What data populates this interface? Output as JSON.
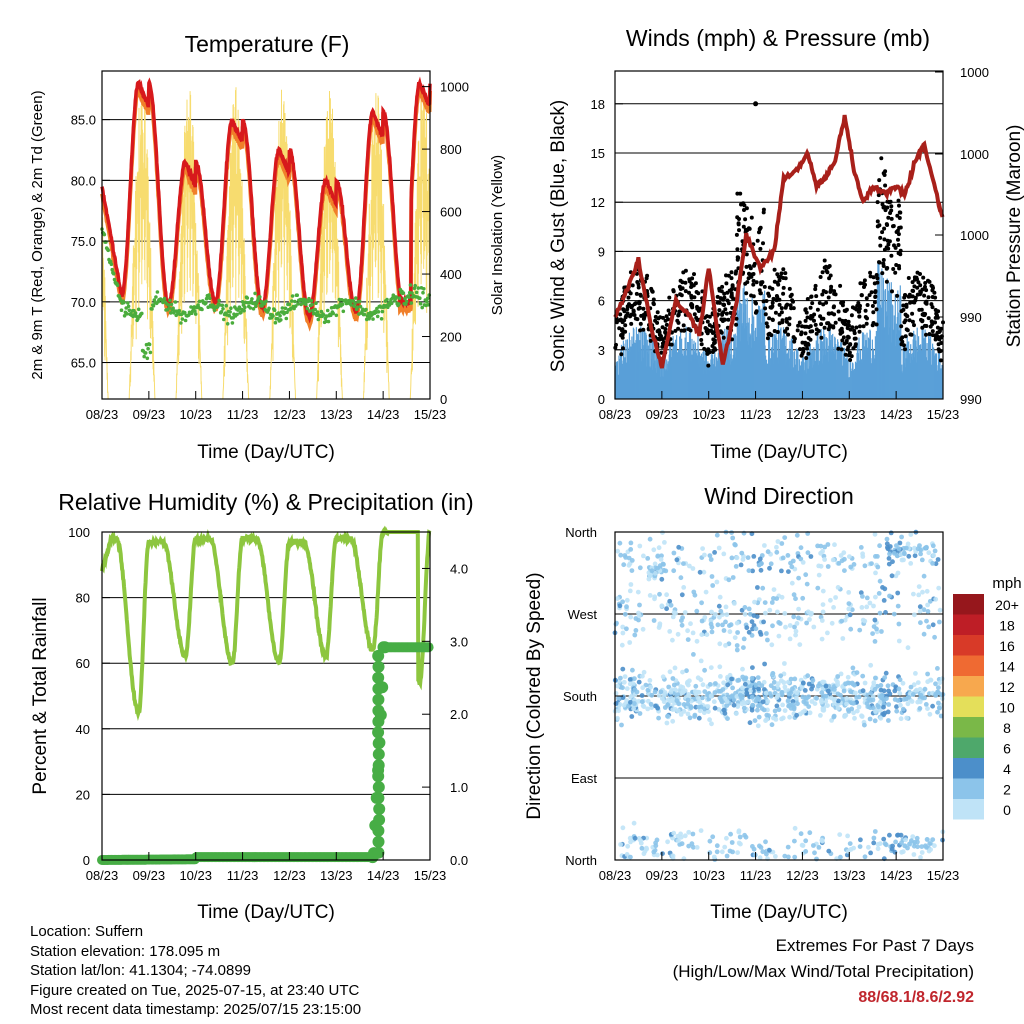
{
  "x_tick_labels": [
    "08/23",
    "09/23",
    "10/23",
    "11/23",
    "12/23",
    "13/23",
    "14/23",
    "15/23"
  ],
  "colors": {
    "temp_2m": "#d7191c",
    "temp_9m": "#f07f2a",
    "dewpoint": "#4aac3c",
    "solar": "#f7dc6f",
    "wind": "#5aa0d8",
    "gust": "#000000",
    "pressure": "#a8201a",
    "rh": "#8dc63f",
    "rain": "#47ad45"
  },
  "panels": {
    "temperature": {
      "title": "Temperature (F)",
      "xlabel": "Time (Day/UTC)",
      "ylabel": "2m & 9m T (Red, Orange) & 2m Td (Green)",
      "ylabel_right": "Solar Insolation (Yellow)",
      "y_ticks": [
        "65.0",
        "70.0",
        "75.0",
        "80.0",
        "85.0"
      ],
      "y2_ticks": [
        "0",
        "200",
        "400",
        "600",
        "800",
        "1000"
      ]
    },
    "winds": {
      "title": "Winds (mph) & Pressure (mb)",
      "xlabel": "Time (Day/UTC)",
      "ylabel": "Sonic Wind & Gust (Blue, Black)",
      "ylabel_right": "Station Pressure (Maroon)",
      "y_ticks": [
        "0",
        "3",
        "6",
        "9",
        "12",
        "15",
        "18"
      ],
      "y2_ticks": [
        "990",
        "990",
        "1000",
        "1000",
        "1000"
      ]
    },
    "humidity": {
      "title": "Relative Humidity (%) & Precipitation (in)",
      "xlabel": "Time (Day/UTC)",
      "ylabel": "Percent & Total Rainfall",
      "y_ticks": [
        "0",
        "20",
        "40",
        "60",
        "80",
        "100"
      ],
      "y2_ticks": [
        "0.0",
        "1.0",
        "2.0",
        "3.0",
        "4.0"
      ]
    },
    "wind_direction": {
      "title": "Wind Direction",
      "xlabel": "Time (Day/UTC)",
      "ylabel": "Direction (Colored By Speed)",
      "y_ticks": [
        "North",
        "East",
        "South",
        "West",
        "North"
      ],
      "legend_title": "mph",
      "legend_labels": [
        "0",
        "2",
        "4",
        "6",
        "8",
        "10",
        "12",
        "14",
        "16",
        "18",
        "20+"
      ],
      "legend_colors": [
        "#bfe3f7",
        "#8cc4ea",
        "#4c8fca",
        "#4ea86b",
        "#7ab848",
        "#e4df5a",
        "#f7a84e",
        "#ef6a32",
        "#d83a28",
        "#be1e26",
        "#96171c"
      ]
    }
  },
  "info": {
    "location": "Location: Suffern",
    "elevation": "Station elevation: 178.095 m",
    "latlon": "Station lat/lon: 41.1304; -74.0899",
    "created": "Figure created on Tue, 2025-07-15, at 23:40 UTC",
    "recent": "Most recent data timestamp: 2025/07/15 23:15:00"
  },
  "extremes": {
    "title": "Extremes For Past 7 Days",
    "subtitle": "(High/Low/Max Wind/Total Precipitation)",
    "values": "88/68.1/8.6/2.92"
  },
  "chart_data": [
    {
      "type": "line",
      "title": "Temperature (F)",
      "x": [
        "08/23",
        "09/23",
        "10/23",
        "11/23",
        "12/23",
        "13/23",
        "14/23",
        "15/23"
      ],
      "ylim": [
        62,
        89
      ],
      "y2lim": [
        0,
        1050
      ],
      "series": [
        {
          "key": "temp",
          "peaks": [
            88,
            81.5,
            85,
            82.5,
            80,
            85.6,
            88
          ],
          "troughs": [
            79.5,
            70.5,
            69.8,
            70,
            69.5,
            68.8,
            69.2,
            69.8
          ]
        },
        {
          "key": "dewpoint",
          "approx_range": [
            63,
            76
          ]
        },
        {
          "key": "solar",
          "peak_values": [
            1000,
            1000,
            1000,
            1000,
            1000,
            1000,
            1000
          ]
        }
      ]
    },
    {
      "type": "scatter",
      "title": "Winds (mph) & Pressure (mb)",
      "x": [
        "08/23",
        "09/23",
        "10/23",
        "11/23",
        "12/23",
        "13/23",
        "14/23",
        "15/23"
      ],
      "ylim": [
        0,
        20
      ],
      "gust_max": 18,
      "wind_approx_range": [
        0,
        9
      ]
    },
    {
      "type": "line",
      "title": "Relative Humidity (%) & Precipitation (in)",
      "x": [
        "08/23",
        "09/23",
        "10/23",
        "11/23",
        "12/23",
        "13/23",
        "14/23",
        "15/23"
      ],
      "ylim": [
        0,
        100
      ],
      "y2lim": [
        0,
        4.5
      ],
      "series": [
        {
          "key": "rh",
          "peaks": [
            98,
            97,
            98,
            98,
            97,
            98,
            100,
            100
          ],
          "troughs": [
            88,
            45,
            62,
            60,
            60,
            62,
            64,
            54
          ]
        },
        {
          "key": "rain",
          "total": 2.92
        }
      ]
    },
    {
      "type": "scatter",
      "title": "Wind Direction",
      "x": [
        "08/23",
        "09/23",
        "10/23",
        "11/23",
        "12/23",
        "13/23",
        "14/23",
        "15/23"
      ],
      "y_categories": [
        "North",
        "East",
        "South",
        "West",
        "North"
      ]
    }
  ]
}
